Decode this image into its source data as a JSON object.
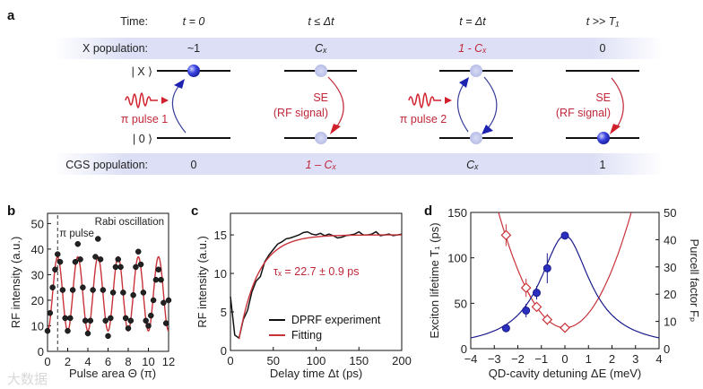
{
  "panel_labels": {
    "a": "a",
    "b": "b",
    "c": "c",
    "d": "d"
  },
  "diagram": {
    "time_label": "Time:",
    "x_pop_label": "X population:",
    "cgs_pop_label": "CGS population:",
    "state_x": "| X ⟩",
    "state_0": "| 0 ⟩",
    "columns": [
      {
        "time": "t = 0",
        "x_pop": "~1",
        "cgs_pop": "0"
      },
      {
        "time": "t ≤ Δt",
        "x_pop": "Cₓ",
        "cgs_pop": "1 – Cₓ"
      },
      {
        "time": "t = Δt",
        "x_pop": "1 - Cₓ",
        "cgs_pop": "Cₓ"
      },
      {
        "time": "t >> T₁",
        "x_pop": "0",
        "cgs_pop": "1"
      }
    ],
    "pulse1": "π pulse 1",
    "pulse2": "π pulse 2",
    "se": "SE",
    "rf_signal": "(RF signal)",
    "colors": {
      "red": "#d0202c",
      "blue": "#1e22b0",
      "band": "#dcdff5"
    }
  },
  "watermark": "大数据",
  "chart_data": [
    {
      "panel": "b",
      "type": "scatter",
      "title": "Rabi oscillation",
      "annotation": "π pulse",
      "annotation_x": 1,
      "xlabel": "Pulse area Θ (π)",
      "ylabel": "RF intensity (a.u.)",
      "xlim": [
        0,
        12
      ],
      "ylim": [
        0,
        54
      ],
      "xticks": [
        0,
        2,
        4,
        6,
        8,
        10,
        12
      ],
      "yticks": [
        0,
        10,
        20,
        30,
        40,
        50
      ],
      "x_step": 0.25,
      "points": [
        8,
        15,
        25,
        32,
        38,
        35,
        24,
        13,
        8,
        13,
        24,
        35,
        42,
        36,
        25,
        12,
        7,
        12,
        24,
        37,
        44,
        36,
        24,
        12,
        6,
        13,
        23,
        33,
        36,
        33,
        23,
        13,
        9,
        12,
        22,
        33,
        39,
        34,
        23,
        12,
        10,
        14,
        20,
        28,
        32,
        28,
        19,
        11,
        20
      ],
      "fit": {
        "offset": 22.5,
        "amplitude": 14.5,
        "period": 2
      },
      "colors": {
        "points": "#222222",
        "fit": "#c8333a"
      }
    },
    {
      "panel": "c",
      "type": "line",
      "xlabel": "Delay time Δt (ps)",
      "ylabel": "RF intensity (a.u.)",
      "xlim": [
        0,
        200
      ],
      "ylim": [
        0,
        17.8
      ],
      "xticks": [
        0,
        50,
        100,
        150,
        200
      ],
      "yticks": [
        0,
        5,
        10,
        15
      ],
      "annotation": "τₓ = 22.7 ± 0.9 ps",
      "legend": [
        "DPRF experiment",
        "Fitting"
      ],
      "legend_position": "bottom-right",
      "series": [
        {
          "name": "DPRF experiment",
          "x_step": 5,
          "values": [
            7,
            2,
            1.6,
            4.0,
            5.2,
            7.6,
            9.0,
            9.6,
            11.5,
            12.4,
            13.1,
            13.8,
            14.1,
            14.5,
            14.6,
            14.8,
            15.0,
            15.3,
            15.4,
            15.1,
            15.0,
            15.2,
            14.9,
            15.1,
            14.9,
            14.6,
            14.7,
            14.9,
            15.0,
            15.1,
            15.4,
            15.0,
            15.0,
            15.1,
            15.4,
            14.9,
            15.0,
            15.1,
            14.9,
            15.0,
            15.1
          ]
        },
        {
          "name": "Fitting",
          "tau": 22.7,
          "start": 10,
          "baseline": 1.5,
          "plateau": 15
        }
      ],
      "colors": {
        "experiment": "#111111",
        "fit": "#c8333a"
      }
    },
    {
      "panel": "d",
      "type": "scatter",
      "xlabel": "QD-cavity detuning ΔE (meV)",
      "ylabel_left": "Exciton lifetime T₁ (ps)",
      "ylabel_right": "Purcell factor Fₚ",
      "xlim": [
        -4,
        4
      ],
      "ylim_left": [
        0,
        150
      ],
      "ylim_right": [
        0,
        50
      ],
      "xticks": [
        -4,
        -3,
        -2,
        -1,
        0,
        1,
        2,
        3,
        4
      ],
      "yticks_left": [
        0,
        50,
        100,
        150
      ],
      "yticks_right": [
        0,
        10,
        20,
        30,
        40,
        50
      ],
      "series": [
        {
          "name": "Exciton lifetime T1",
          "axis": "left",
          "marker": "open-diamond",
          "x": [
            -2.5,
            -1.65,
            -1.2,
            -0.75,
            0
          ],
          "y": [
            125,
            67,
            46,
            32,
            23
          ],
          "err": [
            12,
            10,
            5,
            6,
            2
          ],
          "fit": {
            "min": 23,
            "width": 1.2
          }
        },
        {
          "name": "Purcell factor Fp",
          "axis": "right",
          "marker": "filled-circle",
          "x": [
            -2.5,
            -1.65,
            -1.2,
            -0.75,
            0
          ],
          "y": [
            7.5,
            14,
            20.5,
            29.5,
            41.5
          ],
          "err": [
            0.5,
            2.5,
            2.5,
            5.5,
            1
          ],
          "fit": {
            "peak": 41.5,
            "width": 1.3
          }
        }
      ],
      "colors": {
        "left": "#c8333a",
        "right": "#1a1a8c"
      }
    }
  ]
}
